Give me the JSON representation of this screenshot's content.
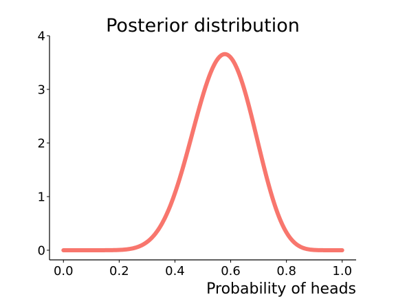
{
  "chart_data": {
    "type": "line",
    "title": "Posterior distribution",
    "xlabel": "Probability of heads",
    "ylabel": "",
    "xlim": [
      -0.05,
      1.05
    ],
    "ylim": [
      -0.18,
      4.0
    ],
    "xticks": [
      0.0,
      0.2,
      0.4,
      0.6,
      0.8,
      1.0
    ],
    "xtick_labels": [
      "0.0",
      "0.2",
      "0.4",
      "0.6",
      "0.8",
      "1.0"
    ],
    "yticks": [
      0,
      1,
      2,
      3,
      4
    ],
    "ytick_labels": [
      "0",
      "1",
      "2",
      "3",
      "4"
    ],
    "grid": false,
    "series": [
      {
        "name": "posterior",
        "color": "#f8766d",
        "distribution": "beta",
        "alpha": 12,
        "beta": 9,
        "x": [
          0.0,
          0.1,
          0.2,
          0.25,
          0.3,
          0.35,
          0.4,
          0.45,
          0.5,
          0.55,
          0.5714,
          0.6,
          0.65,
          0.7,
          0.75,
          0.8,
          0.85,
          0.9,
          1.0
        ],
        "y": [
          0.0,
          0.0,
          0.02,
          0.07,
          0.21,
          0.54,
          1.09,
          1.88,
          2.7,
          3.36,
          3.81,
          3.72,
          3.31,
          2.6,
          1.7,
          0.9,
          0.35,
          0.08,
          0.0
        ]
      }
    ]
  }
}
